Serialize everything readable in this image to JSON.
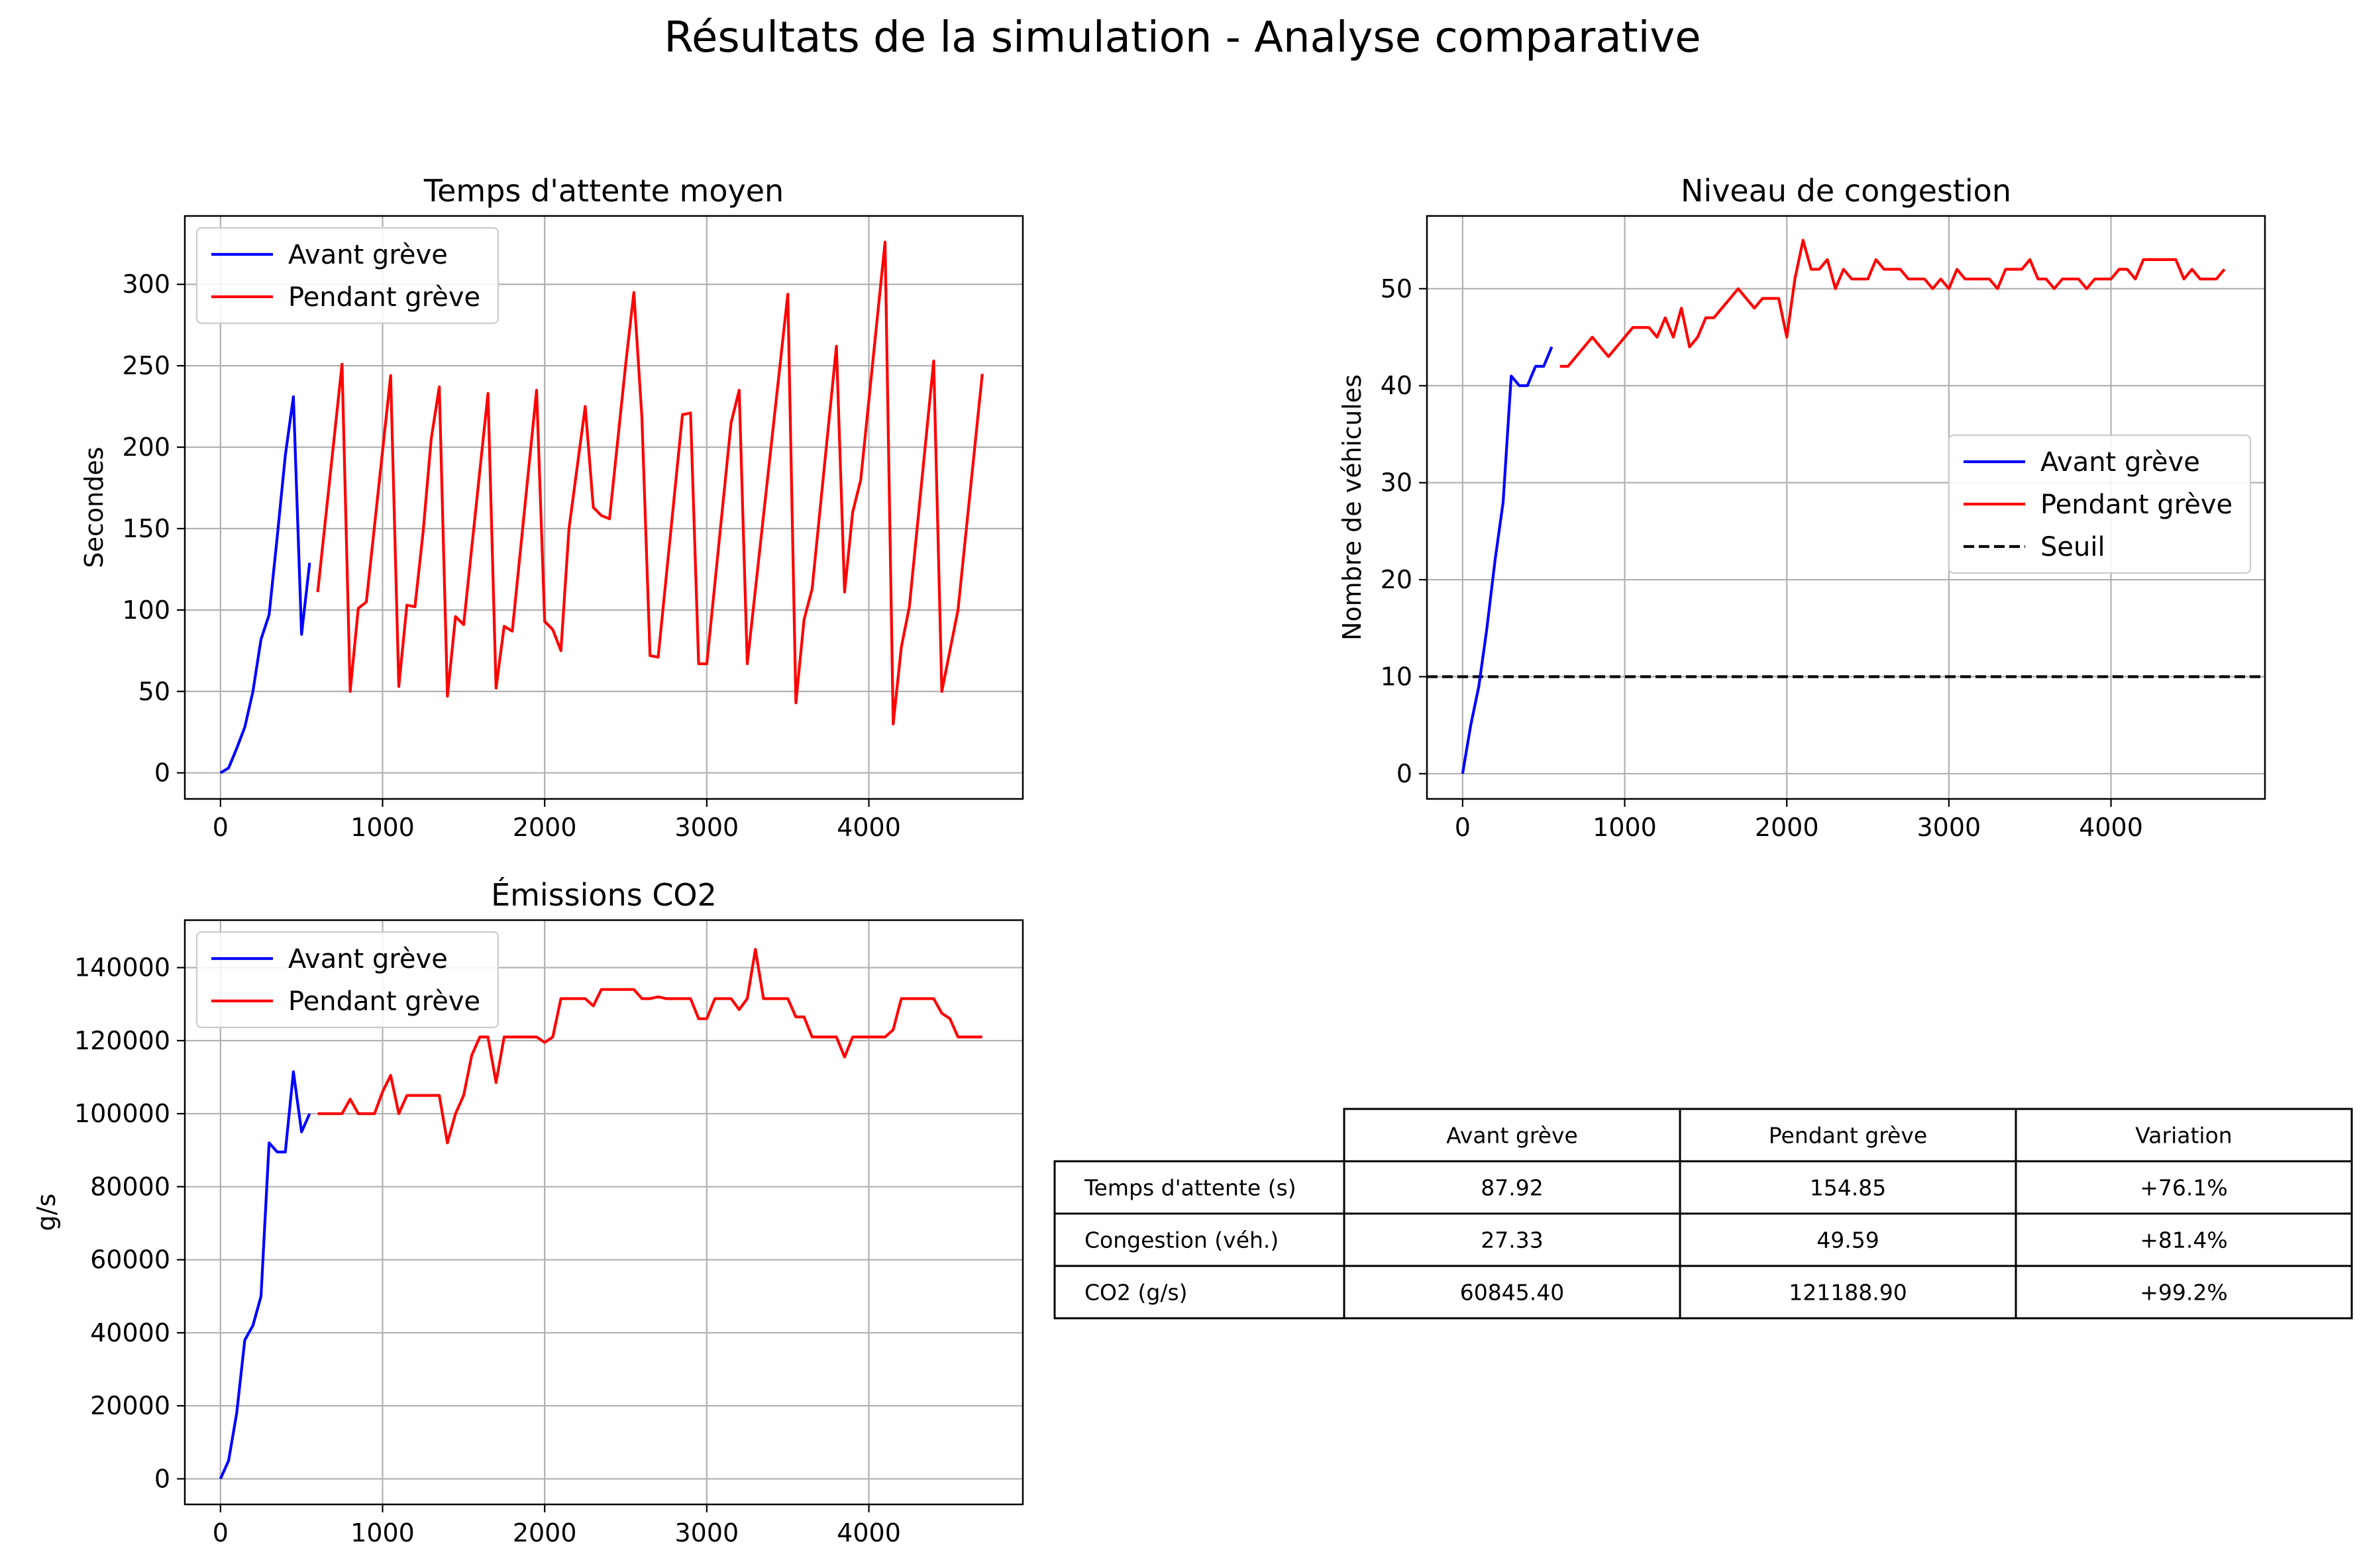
{
  "figure": {
    "title": "Résultats de la simulation - Analyse comparative",
    "colors": {
      "before": "#0000ff",
      "during": "#ff0000",
      "threshold": "#000000",
      "grid": "#b0b0b0"
    }
  },
  "chart_data": [
    {
      "id": "wait",
      "type": "line",
      "title": "Temps d'attente moyen",
      "xlabel": "",
      "ylabel": "Secondes",
      "xlim": [
        -220,
        4950
      ],
      "ylim": [
        -16,
        342
      ],
      "xticks": [
        0,
        1000,
        2000,
        3000,
        4000
      ],
      "yticks": [
        0,
        50,
        100,
        150,
        200,
        250,
        300
      ],
      "grid": true,
      "legend": "upper-left",
      "series": [
        {
          "name": "Avant grève",
          "color": "#0000ff",
          "x": [
            0,
            50,
            100,
            150,
            200,
            250,
            300,
            350,
            400,
            450,
            500,
            550
          ],
          "y": [
            0,
            3,
            15,
            28,
            50,
            82,
            97,
            145,
            195,
            231,
            85,
            129
          ]
        },
        {
          "name": "Pendant grève",
          "color": "#ff0000",
          "x": [
            600,
            750,
            800,
            850,
            900,
            1050,
            1100,
            1150,
            1200,
            1250,
            1300,
            1350,
            1400,
            1450,
            1500,
            1650,
            1700,
            1750,
            1800,
            1950,
            2000,
            2050,
            2100,
            2150,
            2250,
            2300,
            2350,
            2400,
            2500,
            2550,
            2600,
            2650,
            2700,
            2850,
            2900,
            2950,
            3000,
            3150,
            3200,
            3250,
            3500,
            3550,
            3600,
            3650,
            3800,
            3850,
            3900,
            3950,
            4100,
            4150,
            4200,
            4250,
            4400,
            4450,
            4500,
            4550,
            4700
          ],
          "y": [
            111,
            251,
            50,
            101,
            105,
            244,
            53,
            103,
            102,
            148,
            205,
            237,
            47,
            96,
            91,
            233,
            52,
            90,
            87,
            235,
            93,
            88,
            75,
            150,
            225,
            163,
            158,
            156,
            251,
            295,
            218,
            72,
            71,
            220,
            221,
            67,
            67,
            215,
            235,
            67,
            294,
            43,
            94,
            113,
            262,
            111,
            160,
            180,
            326,
            30,
            77,
            102,
            253,
            50,
            75,
            100,
            245
          ]
        }
      ]
    },
    {
      "id": "congestion",
      "type": "line",
      "title": "Niveau de congestion",
      "xlabel": "",
      "ylabel": "Nombre de véhicules",
      "xlim": [
        -220,
        4950
      ],
      "ylim": [
        -2.6,
        57.5
      ],
      "xticks": [
        0,
        1000,
        2000,
        3000,
        4000
      ],
      "yticks": [
        0,
        10,
        20,
        30,
        40,
        50
      ],
      "grid": true,
      "legend": "center-right",
      "threshold": {
        "name": "Seuil",
        "value": 10,
        "color": "#000000"
      },
      "series": [
        {
          "name": "Avant grève",
          "color": "#0000ff",
          "x": [
            0,
            50,
            100,
            150,
            200,
            250,
            300,
            350,
            400,
            450,
            500,
            550
          ],
          "y": [
            0,
            5,
            9,
            15,
            22,
            28,
            41,
            40,
            40,
            42,
            42,
            44
          ]
        },
        {
          "name": "Pendant grève",
          "color": "#ff0000",
          "x": [
            600,
            650,
            700,
            750,
            800,
            850,
            900,
            950,
            1000,
            1050,
            1100,
            1150,
            1200,
            1250,
            1300,
            1350,
            1400,
            1450,
            1500,
            1550,
            1600,
            1650,
            1700,
            1750,
            1800,
            1850,
            1900,
            1950,
            2000,
            2050,
            2100,
            2150,
            2200,
            2250,
            2300,
            2350,
            2400,
            2450,
            2500,
            2550,
            2600,
            2650,
            2700,
            2750,
            2800,
            2850,
            2900,
            2950,
            3000,
            3050,
            3100,
            3150,
            3200,
            3250,
            3300,
            3350,
            3400,
            3450,
            3500,
            3550,
            3600,
            3650,
            3700,
            3750,
            3800,
            3850,
            3900,
            3950,
            4000,
            4050,
            4100,
            4150,
            4200,
            4250,
            4300,
            4350,
            4400,
            4450,
            4500,
            4550,
            4600,
            4650,
            4700
          ],
          "y": [
            42,
            42,
            43,
            44,
            45,
            44,
            43,
            44,
            45,
            46,
            46,
            46,
            45,
            47,
            45,
            48,
            44,
            45,
            47,
            47,
            48,
            49,
            50,
            49,
            48,
            49,
            49,
            49,
            45,
            51,
            55,
            52,
            52,
            53,
            50,
            52,
            51,
            51,
            51,
            53,
            52,
            52,
            52,
            51,
            51,
            51,
            50,
            51,
            50,
            52,
            51,
            51,
            51,
            51,
            50,
            52,
            52,
            52,
            53,
            51,
            51,
            50,
            51,
            51,
            51,
            50,
            51,
            51,
            51,
            52,
            52,
            51,
            53,
            53,
            53,
            53,
            53,
            51,
            52,
            51,
            51,
            51,
            52
          ]
        }
      ]
    },
    {
      "id": "co2",
      "type": "line",
      "title": "Émissions CO2",
      "xlabel": "",
      "ylabel": "g/s",
      "xlim": [
        -220,
        4950
      ],
      "ylim": [
        -7000,
        153000
      ],
      "xticks": [
        0,
        1000,
        2000,
        3000,
        4000
      ],
      "yticks": [
        0,
        20000,
        40000,
        60000,
        80000,
        100000,
        120000,
        140000
      ],
      "grid": true,
      "legend": "upper-left",
      "series": [
        {
          "name": "Avant grève",
          "color": "#0000ff",
          "x": [
            0,
            50,
            100,
            150,
            200,
            250,
            300,
            350,
            400,
            450,
            500,
            550
          ],
          "y": [
            0,
            5000,
            18000,
            38000,
            42000,
            50000,
            92000,
            89500,
            89500,
            111500,
            95000,
            100000
          ]
        },
        {
          "name": "Pendant grève",
          "color": "#ff0000",
          "x": [
            600,
            650,
            700,
            750,
            800,
            850,
            900,
            950,
            1000,
            1050,
            1100,
            1150,
            1200,
            1250,
            1300,
            1350,
            1400,
            1450,
            1500,
            1550,
            1600,
            1650,
            1700,
            1750,
            1800,
            1850,
            1900,
            1950,
            2000,
            2050,
            2100,
            2150,
            2200,
            2250,
            2300,
            2350,
            2400,
            2450,
            2500,
            2550,
            2600,
            2650,
            2700,
            2750,
            2800,
            2850,
            2900,
            2950,
            3000,
            3050,
            3100,
            3150,
            3200,
            3250,
            3300,
            3350,
            3400,
            3450,
            3500,
            3550,
            3600,
            3650,
            3700,
            3750,
            3800,
            3850,
            3900,
            3950,
            4000,
            4050,
            4100,
            4150,
            4200,
            4250,
            4300,
            4350,
            4400,
            4450,
            4500,
            4550,
            4600,
            4650,
            4700
          ],
          "y": [
            100000,
            100000,
            100000,
            100000,
            104000,
            100000,
            100000,
            100000,
            106000,
            110500,
            100000,
            105000,
            105000,
            105000,
            105000,
            105000,
            92000,
            100000,
            105000,
            116000,
            121000,
            121000,
            108500,
            121000,
            121000,
            121000,
            121000,
            121000,
            119500,
            121000,
            131500,
            131500,
            131500,
            131500,
            129500,
            134000,
            134000,
            134000,
            134000,
            134000,
            131500,
            131500,
            132000,
            131500,
            131500,
            131500,
            131500,
            126000,
            126000,
            131500,
            131500,
            131500,
            128500,
            131500,
            145000,
            131500,
            131500,
            131500,
            131500,
            126500,
            126500,
            121000,
            121000,
            121000,
            121000,
            115500,
            121000,
            121000,
            121000,
            121000,
            121000,
            123000,
            131500,
            131500,
            131500,
            131500,
            131500,
            127500,
            126000,
            121000,
            121000,
            121000,
            121000
          ]
        }
      ]
    },
    {
      "id": "summary",
      "type": "table",
      "columns": [
        "Avant grève",
        "Pendant grève",
        "Variation"
      ],
      "rows": [
        {
          "label": "Temps d'attente (s)",
          "values": [
            "87.92",
            "154.85",
            "+76.1%"
          ]
        },
        {
          "label": "Congestion (véh.)",
          "values": [
            "27.33",
            "49.59",
            "+81.4%"
          ]
        },
        {
          "label": "CO2 (g/s)",
          "values": [
            "60845.40",
            "121188.90",
            "+99.2%"
          ]
        }
      ]
    }
  ]
}
